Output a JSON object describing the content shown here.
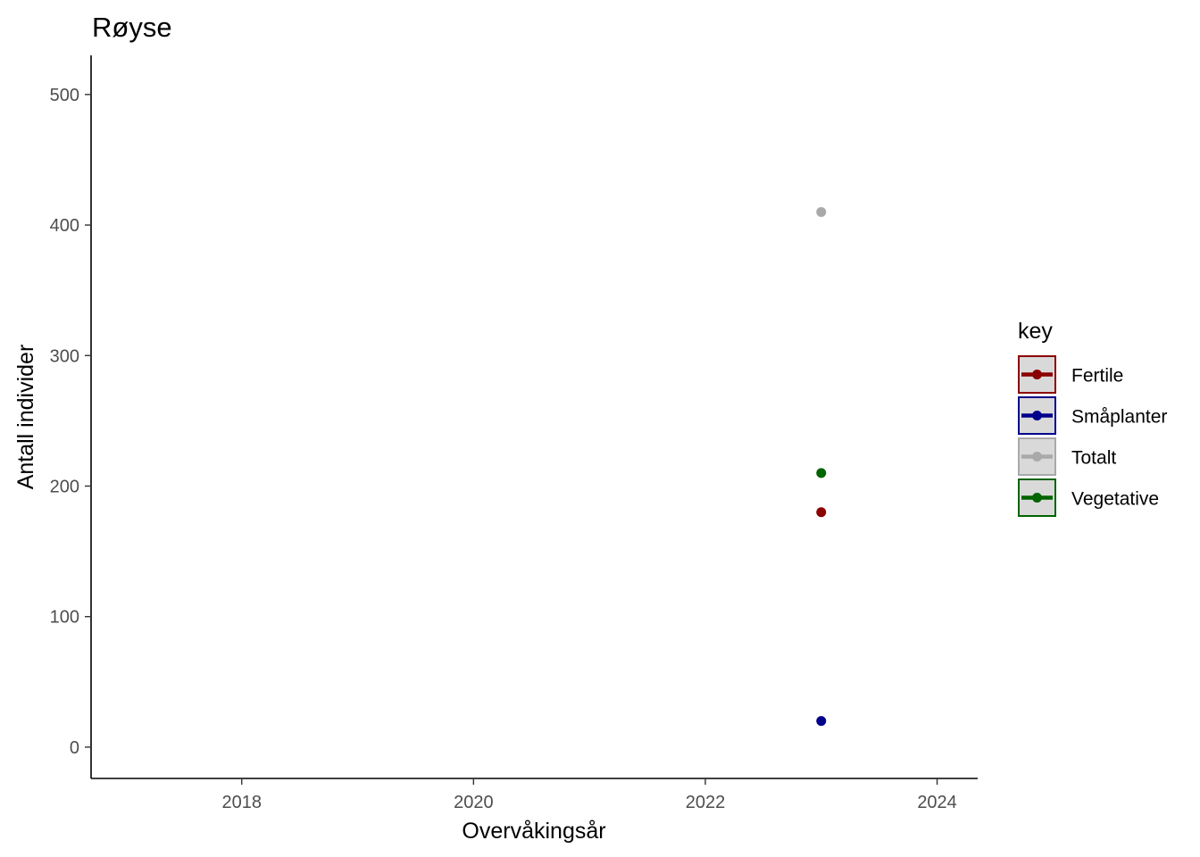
{
  "chart_data": {
    "type": "scatter",
    "title": "Røyse",
    "xlabel": "Overvåkingsår",
    "ylabel": "Antall individer",
    "xlim": [
      2016.7,
      2024.35
    ],
    "ylim": [
      -24,
      530
    ],
    "x_ticks": [
      2018,
      2020,
      2022,
      2024
    ],
    "y_ticks": [
      0,
      100,
      200,
      300,
      400,
      500
    ],
    "grid": false,
    "legend": {
      "title": "key",
      "position": "right"
    },
    "series": [
      {
        "name": "Fertile",
        "color": "#8B0000",
        "points": [
          {
            "x": 2023,
            "y": 180
          }
        ]
      },
      {
        "name": "Småplanter",
        "color": "#00008B",
        "points": [
          {
            "x": 2023,
            "y": 20
          }
        ]
      },
      {
        "name": "Totalt",
        "color": "#A9A9A9",
        "points": [
          {
            "x": 2023,
            "y": 410
          }
        ]
      },
      {
        "name": "Vegetative",
        "color": "#006400",
        "points": [
          {
            "x": 2023,
            "y": 210
          }
        ]
      }
    ]
  }
}
